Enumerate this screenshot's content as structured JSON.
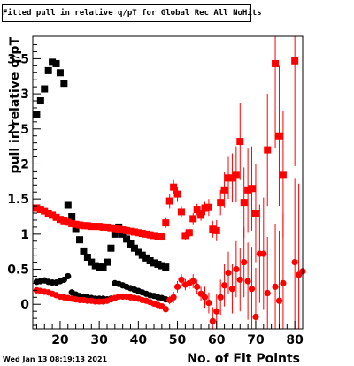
{
  "chart_data": {
    "type": "scatter",
    "title": "Fitted pull in relative q/pT for Global Rec All NoHits",
    "xlabel": "No. of Fit Points",
    "ylabel": "pull in relative q/pT",
    "xlim": [
      13,
      82
    ],
    "ylim": [
      -0.35,
      3.82
    ],
    "xticks": [
      20,
      30,
      40,
      50,
      60,
      70,
      80
    ],
    "yticks": [
      0,
      0.5,
      1,
      1.5,
      2,
      2.5,
      3,
      3.5
    ],
    "yticklabels": [
      "0",
      "0.5",
      "1",
      "1.5",
      "2",
      "2.5",
      "3",
      "3.5"
    ],
    "colors": {
      "black": "#000000",
      "red": "#ff0000"
    },
    "series": [
      {
        "marker": "square",
        "color": "#000000",
        "points": [
          [
            14,
            2.7
          ],
          [
            15,
            2.9
          ],
          [
            16,
            3.07
          ],
          [
            17,
            3.33
          ],
          [
            18,
            3.45
          ],
          [
            19,
            3.43
          ],
          [
            20,
            3.3
          ],
          [
            21,
            3.15
          ],
          [
            22,
            1.42
          ],
          [
            23,
            1.25
          ],
          [
            24,
            1.08
          ],
          [
            25,
            0.92
          ],
          [
            26,
            0.76
          ],
          [
            27,
            0.67
          ],
          [
            28,
            0.6
          ],
          [
            29,
            0.55
          ],
          [
            30,
            0.53
          ],
          [
            31,
            0.53
          ],
          [
            32,
            0.6
          ],
          [
            33,
            0.8
          ],
          [
            34,
            1.0
          ],
          [
            35,
            1.1
          ],
          [
            36,
            1.0
          ],
          [
            37,
            0.93
          ],
          [
            38,
            0.86
          ],
          [
            39,
            0.8
          ],
          [
            40,
            0.74
          ],
          [
            41,
            0.7
          ],
          [
            42,
            0.66
          ],
          [
            43,
            0.62
          ],
          [
            44,
            0.59
          ],
          [
            45,
            0.57
          ],
          [
            46,
            0.55
          ],
          [
            47,
            0.53
          ]
        ]
      },
      {
        "marker": "circle",
        "color": "#000000",
        "points": [
          [
            14,
            0.32
          ],
          [
            15,
            0.33
          ],
          [
            16,
            0.34
          ],
          [
            17,
            0.32
          ],
          [
            18,
            0.31
          ],
          [
            19,
            0.31
          ],
          [
            20,
            0.33
          ],
          [
            21,
            0.35
          ],
          [
            22,
            0.4
          ],
          [
            23,
            0.17
          ],
          [
            24,
            0.14
          ],
          [
            25,
            0.12
          ],
          [
            26,
            0.11
          ],
          [
            27,
            0.1
          ],
          [
            28,
            0.09
          ],
          [
            29,
            0.08
          ],
          [
            30,
            0.08
          ],
          [
            31,
            0.08
          ],
          [
            32,
            0.07
          ],
          [
            33,
            0.08
          ],
          [
            34,
            0.3
          ],
          [
            35,
            0.29
          ],
          [
            36,
            0.27
          ],
          [
            37,
            0.25
          ],
          [
            38,
            0.23
          ],
          [
            39,
            0.21
          ],
          [
            40,
            0.19
          ],
          [
            41,
            0.17
          ],
          [
            42,
            0.15
          ],
          [
            43,
            0.13
          ],
          [
            44,
            0.12
          ],
          [
            45,
            0.1
          ],
          [
            46,
            0.09
          ],
          [
            47,
            0.07
          ]
        ]
      },
      {
        "marker": "square",
        "color": "#ff0000",
        "points": [
          [
            14,
            1.37,
            0.02
          ],
          [
            15,
            1.35,
            0.02
          ],
          [
            16,
            1.33,
            0.02
          ],
          [
            17,
            1.3,
            0.02
          ],
          [
            18,
            1.27,
            0.02
          ],
          [
            19,
            1.24,
            0.02
          ],
          [
            20,
            1.21,
            0.02
          ],
          [
            21,
            1.19,
            0.02
          ],
          [
            22,
            1.17,
            0.02
          ],
          [
            23,
            1.15,
            0.02
          ],
          [
            24,
            1.14,
            0.02
          ],
          [
            25,
            1.13,
            0.02
          ],
          [
            26,
            1.12,
            0.02
          ],
          [
            27,
            1.12,
            0.02
          ],
          [
            28,
            1.11,
            0.02
          ],
          [
            29,
            1.11,
            0.02
          ],
          [
            30,
            1.11,
            0.02
          ],
          [
            31,
            1.1,
            0.02
          ],
          [
            32,
            1.1,
            0.02
          ],
          [
            33,
            1.09,
            0.02
          ],
          [
            34,
            1.08,
            0.02
          ],
          [
            35,
            1.07,
            0.02
          ],
          [
            36,
            1.06,
            0.02
          ],
          [
            37,
            1.05,
            0.02
          ],
          [
            38,
            1.04,
            0.02
          ],
          [
            39,
            1.03,
            0.02
          ],
          [
            40,
            1.02,
            0.02
          ],
          [
            41,
            1.01,
            0.02
          ],
          [
            42,
            1.0,
            0.02
          ],
          [
            43,
            0.99,
            0.02
          ],
          [
            44,
            0.98,
            0.02
          ],
          [
            45,
            0.97,
            0.02
          ],
          [
            46,
            0.96,
            0.02
          ],
          [
            47,
            1.16,
            0.07
          ],
          [
            48,
            1.47,
            0.1
          ],
          [
            49,
            1.67,
            0.1
          ],
          [
            50,
            1.57,
            0.1
          ],
          [
            51,
            1.32,
            0.08
          ],
          [
            52,
            0.98,
            0.06
          ],
          [
            53,
            1.02,
            0.06
          ],
          [
            54,
            1.22,
            0.08
          ],
          [
            55,
            1.35,
            0.08
          ],
          [
            56,
            1.27,
            0.08
          ],
          [
            57,
            1.37,
            0.1
          ],
          [
            58,
            1.38,
            0.12
          ],
          [
            59,
            1.07,
            0.12
          ],
          [
            60,
            1.05,
            0.15
          ],
          [
            61,
            1.45,
            0.18
          ],
          [
            62,
            1.63,
            0.25
          ],
          [
            63,
            1.8,
            0.3
          ],
          [
            64,
            1.8,
            0.35
          ],
          [
            65,
            1.85,
            0.4
          ],
          [
            66,
            2.32,
            0.55
          ],
          [
            67,
            1.45,
            0.5
          ],
          [
            68,
            1.63,
            0.6
          ],
          [
            69,
            1.65,
            0.6
          ],
          [
            70,
            1.3,
            0.7
          ],
          [
            73,
            2.2,
            0.8
          ],
          [
            75,
            3.43,
            1.2
          ],
          [
            76,
            2.4,
            1.0
          ],
          [
            77,
            1.85,
            0.9
          ],
          [
            80,
            3.47,
            1.5
          ]
        ]
      },
      {
        "marker": "circle",
        "color": "#ff0000",
        "points": [
          [
            14,
            0.2,
            0.01
          ],
          [
            15,
            0.19,
            0.01
          ],
          [
            16,
            0.18,
            0.01
          ],
          [
            17,
            0.17,
            0.01
          ],
          [
            18,
            0.15,
            0.01
          ],
          [
            19,
            0.13,
            0.01
          ],
          [
            20,
            0.11,
            0.01
          ],
          [
            21,
            0.1,
            0.01
          ],
          [
            22,
            0.09,
            0.01
          ],
          [
            23,
            0.08,
            0.01
          ],
          [
            24,
            0.07,
            0.01
          ],
          [
            25,
            0.06,
            0.01
          ],
          [
            26,
            0.06,
            0.01
          ],
          [
            27,
            0.05,
            0.01
          ],
          [
            28,
            0.05,
            0.01
          ],
          [
            29,
            0.04,
            0.01
          ],
          [
            30,
            0.04,
            0.01
          ],
          [
            31,
            0.04,
            0.01
          ],
          [
            32,
            0.05,
            0.01
          ],
          [
            33,
            0.07,
            0.01
          ],
          [
            34,
            0.09,
            0.01
          ],
          [
            35,
            0.11,
            0.01
          ],
          [
            36,
            0.11,
            0.01
          ],
          [
            37,
            0.11,
            0.01
          ],
          [
            38,
            0.1,
            0.01
          ],
          [
            39,
            0.09,
            0.01
          ],
          [
            40,
            0.08,
            0.01
          ],
          [
            41,
            0.06,
            0.01
          ],
          [
            42,
            0.05,
            0.01
          ],
          [
            43,
            0.03,
            0.01
          ],
          [
            44,
            0.01,
            0.01
          ],
          [
            45,
            -0.01,
            0.01
          ],
          [
            46,
            -0.03,
            0.01
          ],
          [
            47,
            -0.07,
            0.02
          ],
          [
            48,
            0.06,
            0.06
          ],
          [
            49,
            0.1,
            0.08
          ],
          [
            50,
            0.25,
            0.08
          ],
          [
            51,
            0.35,
            0.08
          ],
          [
            52,
            0.28,
            0.08
          ],
          [
            53,
            0.3,
            0.08
          ],
          [
            54,
            0.33,
            0.1
          ],
          [
            55,
            0.25,
            0.1
          ],
          [
            56,
            0.15,
            0.1
          ],
          [
            57,
            0.1,
            0.15
          ],
          [
            58,
            0.02,
            0.15
          ],
          [
            59,
            -0.24,
            0.2
          ],
          [
            60,
            -0.1,
            0.25
          ],
          [
            61,
            0.1,
            0.25
          ],
          [
            62,
            0.27,
            0.3
          ],
          [
            63,
            0.45,
            0.3
          ],
          [
            64,
            0.22,
            0.35
          ],
          [
            65,
            0.5,
            0.4
          ],
          [
            66,
            0.35,
            0.45
          ],
          [
            67,
            0.6,
            0.5
          ],
          [
            68,
            0.33,
            0.55
          ],
          [
            69,
            0.22,
            0.6
          ],
          [
            70,
            -0.18,
            0.7
          ],
          [
            71,
            0.72,
            0.7
          ],
          [
            72,
            0.72,
            0.8
          ],
          [
            73,
            0.16,
            0.8
          ],
          [
            75,
            0.25,
            0.9
          ],
          [
            76,
            0.05,
            1.0
          ],
          [
            77,
            0.3,
            1.0
          ],
          [
            80,
            0.6,
            1.2
          ],
          [
            81,
            0.42,
            1.3
          ],
          [
            82,
            0.47,
            1.3
          ]
        ]
      }
    ]
  },
  "date_stamp": "Wed Jan 13 08:19:13 2021"
}
